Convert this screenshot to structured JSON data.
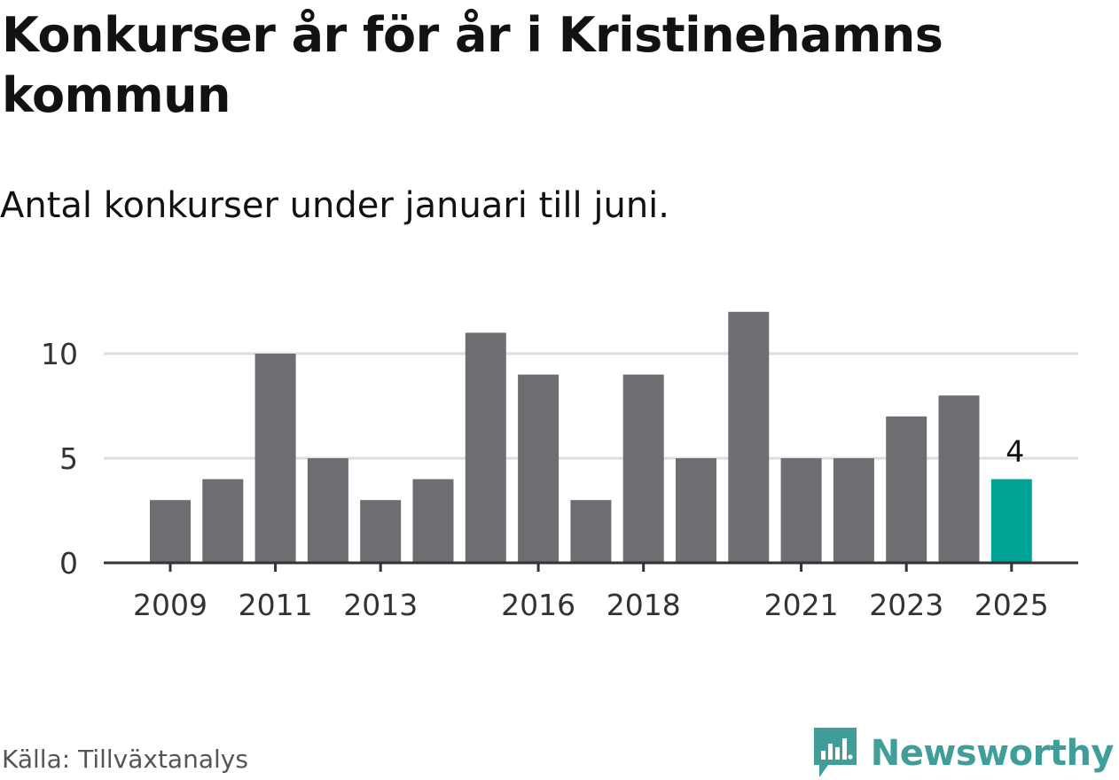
{
  "title": "Konkurser år för år i Kristinehamns kommun",
  "subtitle": "Antal konkurser under januari till juni.",
  "source": "Källa: Tillväxtanalys",
  "brand": {
    "name": "Newsworthy",
    "color": "#3f9e9a",
    "icon": "newsworthy-logo-icon"
  },
  "colors": {
    "bar": "#6e6d72",
    "highlight": "#00a396",
    "grid": "#dddddd",
    "axis": "#333333"
  },
  "chart_data": {
    "type": "bar",
    "categories": [
      "2009",
      "2010",
      "2011",
      "2012",
      "2013",
      "2014",
      "2015",
      "2016",
      "2017",
      "2018",
      "2019",
      "2020",
      "2021",
      "2022",
      "2023",
      "2024",
      "2025"
    ],
    "values": [
      3,
      4,
      10,
      5,
      3,
      4,
      11,
      9,
      3,
      9,
      5,
      12,
      5,
      5,
      7,
      8,
      4
    ],
    "x_tick_labels": [
      "2009",
      "2011",
      "2013",
      "2016",
      "2018",
      "2021",
      "2023",
      "2025"
    ],
    "y_ticks": [
      0,
      5,
      10
    ],
    "ylim": [
      0,
      12
    ],
    "highlight": {
      "category": "2025",
      "value_label": "4"
    },
    "title": "Konkurser år för år i Kristinehamns kommun",
    "xlabel": "",
    "ylabel": "",
    "grid": true,
    "legend": false
  }
}
